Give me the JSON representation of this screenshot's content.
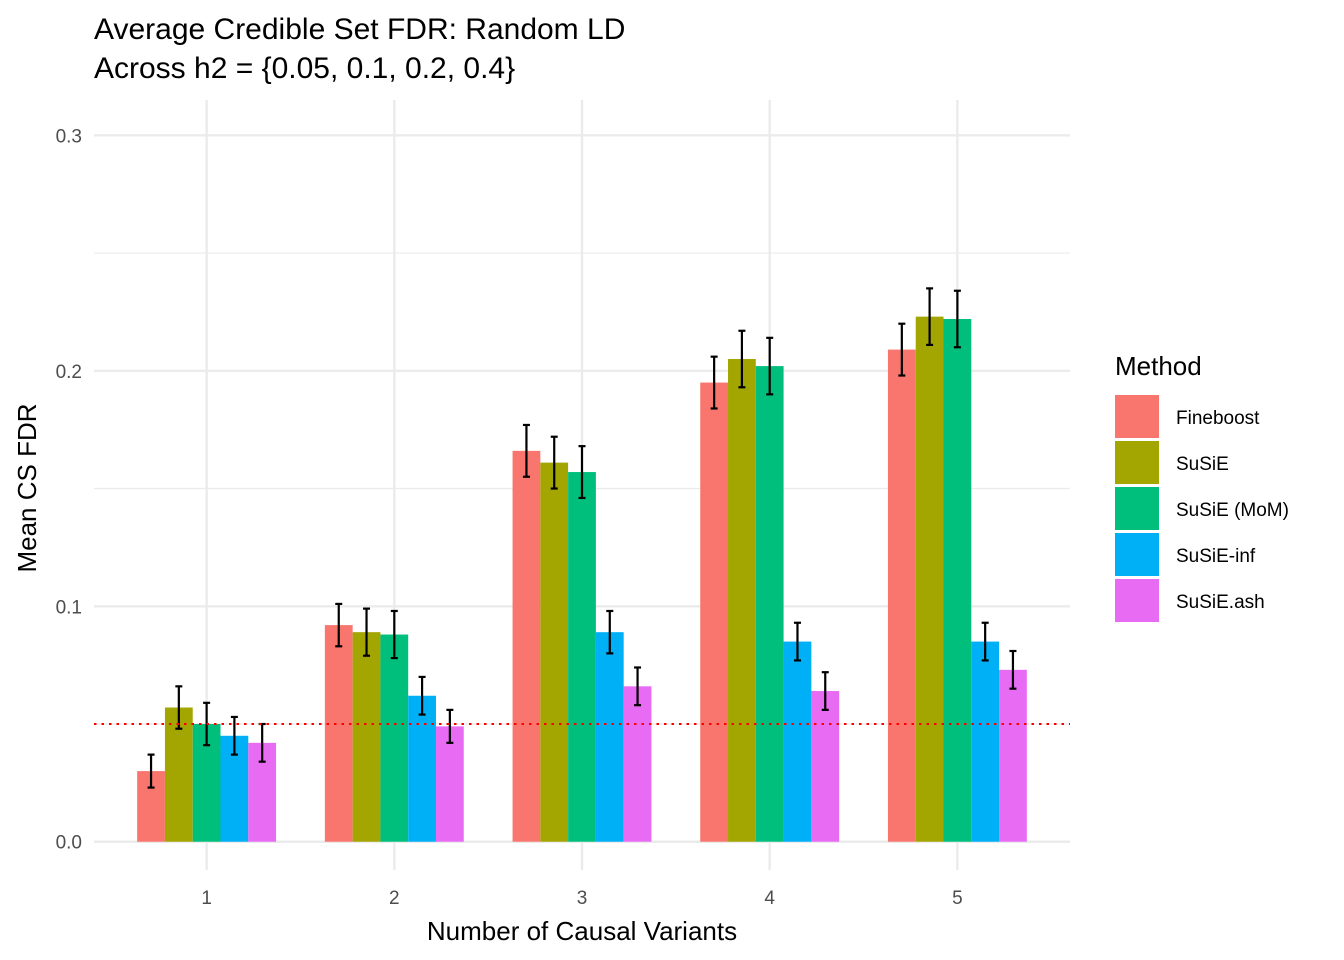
{
  "chart_data": {
    "type": "bar",
    "title_line1": "Average Credible Set FDR: Random LD",
    "title_line2": "Across h2 = {0.05, 0.1, 0.2, 0.4}",
    "xlabel": "Number of Causal Variants",
    "ylabel": "Mean CS FDR",
    "categories": [
      "1",
      "2",
      "3",
      "4",
      "5"
    ],
    "ylim": [
      -0.012,
      0.315
    ],
    "yticks": [
      0.0,
      0.1,
      0.2,
      0.3
    ],
    "ytick_labels": [
      "0.0",
      "0.1",
      "0.2",
      "0.3"
    ],
    "reference_line": {
      "value": 0.05,
      "color": "#ff0000",
      "style": "dotted"
    },
    "grid": true,
    "legend": {
      "title": "Method",
      "position": "right"
    },
    "series": [
      {
        "name": "Fineboost",
        "color": "#F8766D",
        "values": [
          0.03,
          0.092,
          0.166,
          0.195,
          0.209
        ],
        "err_low": [
          0.023,
          0.083,
          0.155,
          0.184,
          0.198
        ],
        "err_high": [
          0.037,
          0.101,
          0.177,
          0.206,
          0.22
        ]
      },
      {
        "name": "SuSiE",
        "color": "#A3A500",
        "values": [
          0.057,
          0.089,
          0.161,
          0.205,
          0.223
        ],
        "err_low": [
          0.048,
          0.079,
          0.15,
          0.193,
          0.211
        ],
        "err_high": [
          0.066,
          0.099,
          0.172,
          0.217,
          0.235
        ]
      },
      {
        "name": "SuSiE (MoM)",
        "color": "#00BF7D",
        "values": [
          0.05,
          0.088,
          0.157,
          0.202,
          0.222
        ],
        "err_low": [
          0.041,
          0.078,
          0.146,
          0.19,
          0.21
        ],
        "err_high": [
          0.059,
          0.098,
          0.168,
          0.214,
          0.234
        ]
      },
      {
        "name": "SuSiE-inf",
        "color": "#00B0F6",
        "values": [
          0.045,
          0.062,
          0.089,
          0.085,
          0.085
        ],
        "err_low": [
          0.037,
          0.054,
          0.08,
          0.077,
          0.077
        ],
        "err_high": [
          0.053,
          0.07,
          0.098,
          0.093,
          0.093
        ]
      },
      {
        "name": "SuSiE.ash",
        "color": "#E76BF3",
        "values": [
          0.042,
          0.049,
          0.066,
          0.064,
          0.073
        ],
        "err_low": [
          0.034,
          0.042,
          0.058,
          0.056,
          0.065
        ],
        "err_high": [
          0.05,
          0.056,
          0.074,
          0.072,
          0.081
        ]
      }
    ]
  }
}
